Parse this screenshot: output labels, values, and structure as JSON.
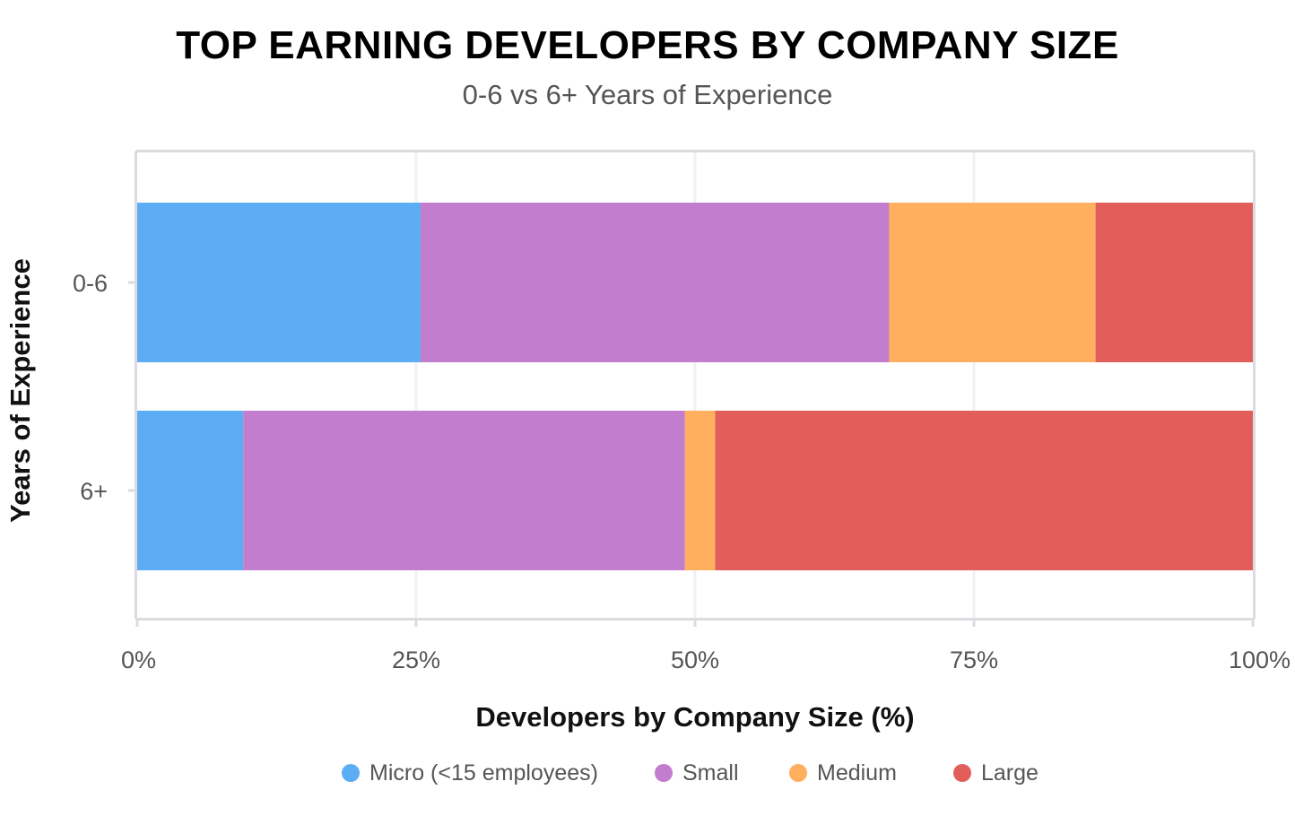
{
  "chart_data": {
    "type": "bar",
    "orientation": "horizontal",
    "stacked": true,
    "title": "TOP EARNING DEVELOPERS BY COMPANY SIZE",
    "subtitle": "0-6 vs 6+ Years of Experience",
    "xlabel": "Developers by Company Size (%)",
    "ylabel": "Years of Experience",
    "categories": [
      "0-6",
      "6+"
    ],
    "xlim": [
      0,
      100
    ],
    "xticks": [
      "0%",
      "25%",
      "50%",
      "75%",
      "100%"
    ],
    "grid": "vertical",
    "legend_position": "bottom",
    "series": [
      {
        "name": "Micro (<15 employees)",
        "color": "#5DADF5",
        "values": [
          25.4,
          9.5
        ]
      },
      {
        "name": "Small",
        "color": "#C37DCE",
        "values": [
          42.0,
          39.6
        ]
      },
      {
        "name": "Medium",
        "color": "#FFAF5E",
        "values": [
          18.5,
          2.7
        ]
      },
      {
        "name": "Large",
        "color": "#E25E5B",
        "values": [
          14.1,
          48.2
        ]
      }
    ]
  }
}
